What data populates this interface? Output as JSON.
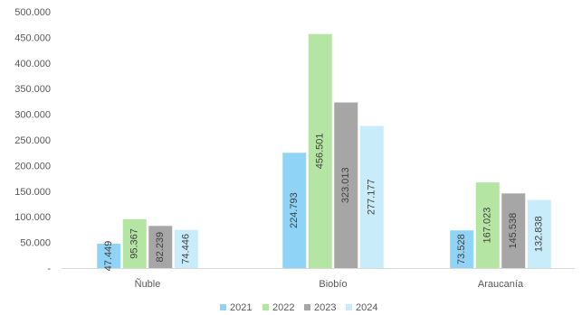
{
  "chart_data": {
    "type": "bar",
    "categories": [
      "Ñuble",
      "Biobío",
      "Araucanía"
    ],
    "series": [
      {
        "name": "2021",
        "color": "#8fd3f7",
        "values": [
          47449,
          224793,
          73528
        ]
      },
      {
        "name": "2022",
        "color": "#b4e5a2",
        "values": [
          95367,
          456501,
          167023
        ]
      },
      {
        "name": "2023",
        "color": "#a6a6a6",
        "values": [
          82239,
          323013,
          145538
        ]
      },
      {
        "name": "2024",
        "color": "#c9ecfa",
        "values": [
          74446,
          277177,
          132838
        ]
      }
    ],
    "data_labels": [
      [
        "47.449",
        "224.793",
        "73.528"
      ],
      [
        "95.367",
        "456.501",
        "167.023"
      ],
      [
        "82.239",
        "323.013",
        "145.538"
      ],
      [
        "74.446",
        "277.177",
        "132.838"
      ]
    ],
    "ylim": [
      0,
      500000
    ],
    "yticks": [
      0,
      50000,
      100000,
      150000,
      200000,
      250000,
      300000,
      350000,
      400000,
      450000,
      500000
    ],
    "ytick_labels": [
      "-",
      "50.000",
      "100.000",
      "150.000",
      "200.000",
      "250.000",
      "300.000",
      "350.000",
      "400.000",
      "450.000",
      "500.000"
    ],
    "grid": false,
    "legend_position": "bottom",
    "title": "",
    "xlabel": "",
    "ylabel": ""
  }
}
